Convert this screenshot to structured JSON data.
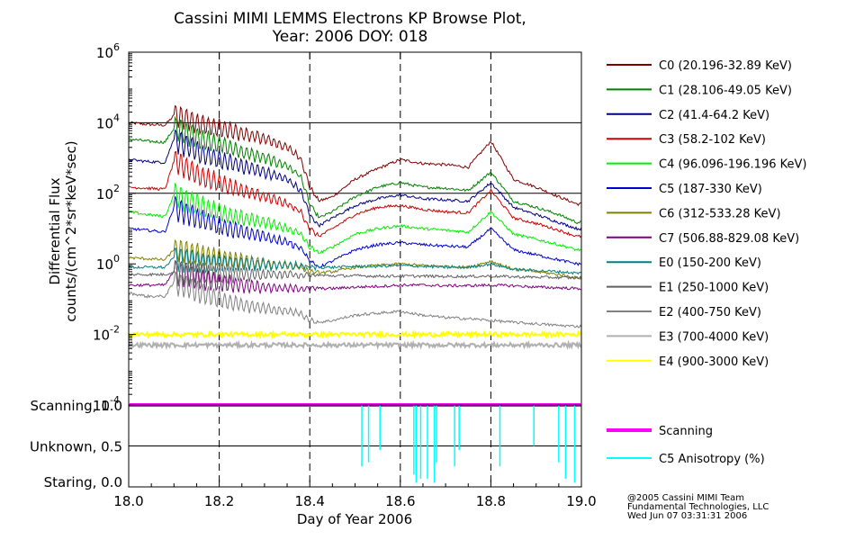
{
  "title_line1": "Cassini MIMI LEMMS Electrons KP Browse Plot,",
  "title_line2": "Year: 2006 DOY: 018",
  "ylabel_line1": "Differential Flux",
  "ylabel_line2": "counts/(cm^2*sr*keV*sec)",
  "xlabel": "Day of Year 2006",
  "footer": [
    "@2005 Cassini MIMI Team",
    "Fundamental Technologies, LLC",
    "Wed Jun 07 03:31:31 2006"
  ],
  "chart_data": [
    {
      "type": "line",
      "title": "Cassini MIMI LEMMS Electrons KP Browse Plot, Year: 2006 DOY: 018",
      "xlabel": "Day of Year 2006",
      "ylabel": "Differential Flux counts/(cm^2*sr*keV*sec)",
      "y_scale": "log",
      "xlim": [
        18.0,
        19.0
      ],
      "ylim": [
        0.0001,
        1000000
      ],
      "x_ticks": [
        18.0,
        18.2,
        18.4,
        18.6,
        18.8,
        19.0
      ],
      "x_tick_labels": [
        "18.0",
        "18.2",
        "18.4",
        "18.6",
        "18.8",
        "19.0"
      ],
      "y_ticks": [
        0.0001,
        0.01,
        1,
        100,
        10000,
        1000000
      ],
      "y_tick_labels": [
        {
          "b": "10",
          "e": "-4"
        },
        {
          "b": "10",
          "e": "-2"
        },
        {
          "b": "10",
          "e": "0"
        },
        {
          "b": "10",
          "e": "2"
        },
        {
          "b": "10",
          "e": "4"
        },
        {
          "b": "10",
          "e": "6"
        }
      ],
      "grid": {
        "horizontal_solid_at": [
          100,
          10000
        ],
        "vertical_dashed_at": [
          18.2,
          18.4,
          18.6,
          18.8
        ]
      },
      "legend_position": "right",
      "x": [
        18.0,
        18.04,
        18.08,
        18.1,
        18.12,
        18.16,
        18.2,
        18.25,
        18.3,
        18.35,
        18.38,
        18.4,
        18.42,
        18.45,
        18.5,
        18.55,
        18.6,
        18.65,
        18.7,
        18.75,
        18.8,
        18.85,
        18.9,
        18.95,
        18.99
      ],
      "series": [
        {
          "name": "C0 (20.196-32.89 KeV)",
          "color": "#800000",
          "values": [
            10000,
            9000,
            8500,
            16000,
            14000,
            9000,
            7000,
            5000,
            3500,
            2000,
            1000,
            150,
            60,
            80,
            250,
            500,
            900,
            700,
            650,
            550,
            3000,
            250,
            150,
            80,
            50
          ]
        },
        {
          "name": "C1 (28.106-49.05 KeV)",
          "color": "#008000",
          "values": [
            3500,
            3000,
            2800,
            7000,
            5500,
            3500,
            2500,
            1500,
            1000,
            600,
            300,
            50,
            20,
            30,
            80,
            150,
            200,
            150,
            140,
            120,
            400,
            60,
            40,
            25,
            15
          ]
        },
        {
          "name": "C2 (41.4-64.2 KeV)",
          "color": "#000080",
          "values": [
            900,
            800,
            750,
            3500,
            2500,
            1300,
            900,
            600,
            400,
            250,
            120,
            25,
            12,
            20,
            45,
            70,
            90,
            70,
            65,
            60,
            200,
            40,
            25,
            15,
            10
          ]
        },
        {
          "name": "C3 (58.2-102 KeV)",
          "color": "#cc0000",
          "values": [
            150,
            140,
            130,
            800,
            600,
            300,
            200,
            120,
            80,
            50,
            30,
            10,
            6,
            10,
            25,
            40,
            45,
            35,
            30,
            28,
            120,
            20,
            14,
            9,
            6
          ]
        },
        {
          "name": "C4 (96.096-196.196 KeV)",
          "color": "#00ee00",
          "values": [
            30,
            25,
            22,
            90,
            70,
            45,
            30,
            20,
            15,
            10,
            7,
            3,
            2,
            3,
            7,
            10,
            12,
            10,
            9,
            8,
            30,
            7,
            5,
            3.5,
            2.5
          ]
        },
        {
          "name": "C5 (187-330 KeV)",
          "color": "#0000cc",
          "values": [
            10,
            9,
            8,
            40,
            30,
            18,
            12,
            8,
            6,
            4,
            3,
            1.2,
            0.8,
            1.2,
            2.5,
            3.5,
            4,
            3.5,
            3.2,
            3,
            10,
            2.5,
            1.8,
            1.3,
            1
          ]
        },
        {
          "name": "C6 (312-533.28 KeV)",
          "color": "#808000",
          "values": [
            1.5,
            1.4,
            1.3,
            2.5,
            2.2,
            1.8,
            1.5,
            1.2,
            1,
            0.9,
            0.8,
            0.6,
            0.55,
            0.6,
            0.8,
            0.9,
            1,
            0.9,
            0.85,
            0.8,
            1.2,
            0.7,
            0.6,
            0.5,
            0.4
          ]
        },
        {
          "name": "C7 (506.88-829.08 KeV)",
          "color": "#800080",
          "values": [
            0.25,
            0.25,
            0.25,
            0.6,
            0.5,
            0.35,
            0.3,
            0.25,
            0.22,
            0.2,
            0.2,
            0.2,
            0.2,
            0.2,
            0.22,
            0.23,
            0.25,
            0.25,
            0.24,
            0.24,
            0.25,
            0.24,
            0.22,
            0.21,
            0.2
          ]
        },
        {
          "name": "E0 (150-200 KeV)",
          "color": "#008080",
          "values": [
            0.8,
            0.8,
            0.8,
            1.5,
            1.3,
            1.1,
            1,
            1,
            0.95,
            0.9,
            0.9,
            0.8,
            0.8,
            0.8,
            0.85,
            0.85,
            0.9,
            0.85,
            0.8,
            0.8,
            1,
            0.7,
            0.65,
            0.6,
            0.55
          ]
        },
        {
          "name": "E1 (250-1000 KeV)",
          "color": "#606060",
          "values": [
            0.5,
            0.5,
            0.5,
            0.6,
            0.6,
            0.55,
            0.5,
            0.5,
            0.5,
            0.5,
            0.48,
            0.47,
            0.47,
            0.46,
            0.46,
            0.45,
            0.45,
            0.45,
            0.44,
            0.44,
            0.45,
            0.43,
            0.42,
            0.41,
            0.4
          ]
        },
        {
          "name": "E2 (400-750 KeV)",
          "color": "#808080",
          "values": [
            0.15,
            0.12,
            0.12,
            0.3,
            0.25,
            0.15,
            0.1,
            0.07,
            0.055,
            0.045,
            0.04,
            0.025,
            0.022,
            0.025,
            0.035,
            0.04,
            0.045,
            0.035,
            0.03,
            0.028,
            0.025,
            0.022,
            0.02,
            0.018,
            0.017
          ]
        },
        {
          "name": "E3 (700-4000 KeV)",
          "color": "#b0b0b0",
          "values": [
            0.005,
            0.005,
            0.005,
            0.005,
            0.005,
            0.005,
            0.005,
            0.005,
            0.005,
            0.005,
            0.005,
            0.005,
            0.005,
            0.005,
            0.005,
            0.005,
            0.005,
            0.005,
            0.005,
            0.005,
            0.005,
            0.005,
            0.005,
            0.005,
            0.005
          ]
        },
        {
          "name": "E4 (900-3000 KeV)",
          "color": "#ffff00",
          "values": [
            0.01,
            0.01,
            0.01,
            0.01,
            0.01,
            0.01,
            0.01,
            0.01,
            0.01,
            0.01,
            0.01,
            0.01,
            0.01,
            0.01,
            0.01,
            0.01,
            0.01,
            0.01,
            0.01,
            0.01,
            0.01,
            0.01,
            0.01,
            0.01,
            0.01
          ]
        }
      ]
    },
    {
      "type": "line",
      "xlim": [
        18.0,
        19.0
      ],
      "ylim": [
        0.0,
        1.0
      ],
      "y_tick_labels": [
        {
          "value": 1.0,
          "label": "Scanning, 1.0"
        },
        {
          "value": 0.5,
          "label": "Unknown, 0.5"
        },
        {
          "value": 0.0,
          "label": "Staring, 0.0"
        }
      ],
      "legend_position": "right",
      "series": [
        {
          "name": "Scanning",
          "color": "#ff00ff",
          "x": [
            18.0,
            19.0
          ],
          "values": [
            1.0,
            1.0
          ]
        },
        {
          "name": "C5 Anisotropy (%)",
          "color": "#00ffff",
          "dips": [
            {
              "x": 18.515,
              "min": 0.25
            },
            {
              "x": 18.53,
              "min": 0.3
            },
            {
              "x": 18.555,
              "min": 0.45
            },
            {
              "x": 18.63,
              "min": 0.15
            },
            {
              "x": 18.635,
              "min": 0.05
            },
            {
              "x": 18.645,
              "min": 0.1
            },
            {
              "x": 18.66,
              "min": 0.1
            },
            {
              "x": 18.675,
              "min": 0.05
            },
            {
              "x": 18.68,
              "min": 0.3
            },
            {
              "x": 18.72,
              "min": 0.25
            },
            {
              "x": 18.73,
              "min": 0.45
            },
            {
              "x": 18.82,
              "min": 0.25
            },
            {
              "x": 18.895,
              "min": 0.5
            },
            {
              "x": 18.95,
              "min": 0.3
            },
            {
              "x": 18.965,
              "min": 0.1
            },
            {
              "x": 18.985,
              "min": 0.05
            }
          ]
        }
      ]
    }
  ]
}
